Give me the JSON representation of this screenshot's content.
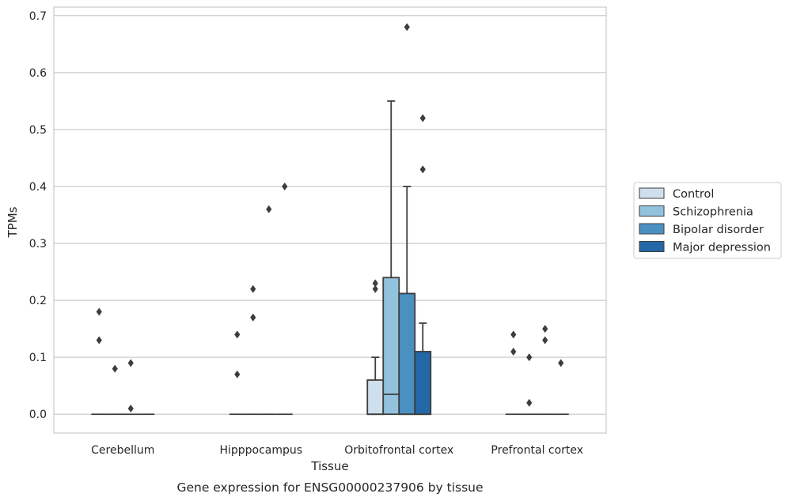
{
  "chart_data": {
    "type": "box",
    "xlabel": "Tissue",
    "ylabel": "TPMs",
    "caption": "Gene expression for ENSG00000237906 by tissue",
    "ylim": [
      -0.033,
      0.715
    ],
    "yticks": [
      "0.0",
      "0.1",
      "0.2",
      "0.3",
      "0.4",
      "0.5",
      "0.6",
      "0.7"
    ],
    "ytick_values": [
      0,
      0.1,
      0.2,
      0.3,
      0.4,
      0.5,
      0.6,
      0.7
    ],
    "grid": "horizontal",
    "legend_placement": "right",
    "categories": [
      "Cerebellum",
      "Hipppocampus",
      "Orbitofrontal cortex",
      "Prefrontal cortex"
    ],
    "series": [
      {
        "name": "Control",
        "color": "#cfdfee",
        "boxes": [
          {
            "q1": 0,
            "median": 0,
            "q3": 0,
            "whislo": 0,
            "whishi": 0,
            "fliers": [
              0.18,
              0.13
            ]
          },
          {
            "q1": 0,
            "median": 0,
            "q3": 0,
            "whislo": 0,
            "whishi": 0,
            "fliers": [
              0.14,
              0.07
            ]
          },
          {
            "q1": 0,
            "median": 0,
            "q3": 0.06,
            "whislo": 0,
            "whishi": 0.1,
            "fliers": [
              0.23,
              0.22
            ]
          },
          {
            "q1": 0,
            "median": 0,
            "q3": 0,
            "whislo": 0,
            "whishi": 0,
            "fliers": [
              0.14,
              0.11
            ]
          }
        ]
      },
      {
        "name": "Schizophrenia",
        "color": "#93c2de",
        "boxes": [
          {
            "q1": 0,
            "median": 0,
            "q3": 0,
            "whislo": 0,
            "whishi": 0,
            "fliers": [
              0.08
            ]
          },
          {
            "q1": 0,
            "median": 0,
            "q3": 0,
            "whislo": 0,
            "whishi": 0,
            "fliers": [
              0.22,
              0.17
            ]
          },
          {
            "q1": 0,
            "median": 0.035,
            "q3": 0.24,
            "whislo": 0,
            "whishi": 0.55,
            "fliers": []
          },
          {
            "q1": 0,
            "median": 0,
            "q3": 0,
            "whislo": 0,
            "whishi": 0,
            "fliers": [
              0.1,
              0.02
            ]
          }
        ]
      },
      {
        "name": "Bipolar disorder",
        "color": "#4a91c2",
        "boxes": [
          {
            "q1": 0,
            "median": 0,
            "q3": 0,
            "whislo": 0,
            "whishi": 0,
            "fliers": [
              0.09,
              0.01
            ]
          },
          {
            "q1": 0,
            "median": 0,
            "q3": 0,
            "whislo": 0,
            "whishi": 0,
            "fliers": [
              0.36
            ]
          },
          {
            "q1": 0,
            "median": 0,
            "q3": 0.212,
            "whislo": 0,
            "whishi": 0.4,
            "fliers": [
              0.68
            ]
          },
          {
            "q1": 0,
            "median": 0,
            "q3": 0,
            "whislo": 0,
            "whishi": 0,
            "fliers": [
              0.15,
              0.13
            ]
          }
        ]
      },
      {
        "name": "Major depression",
        "color": "#2467a7",
        "boxes": [
          {
            "q1": 0,
            "median": 0,
            "q3": 0,
            "whislo": 0,
            "whishi": 0,
            "fliers": []
          },
          {
            "q1": 0,
            "median": 0,
            "q3": 0,
            "whislo": 0,
            "whishi": 0,
            "fliers": [
              0.4
            ]
          },
          {
            "q1": 0,
            "median": 0,
            "q3": 0.11,
            "whislo": 0,
            "whishi": 0.16,
            "fliers": [
              0.52,
              0.43
            ]
          },
          {
            "q1": 0,
            "median": 0,
            "q3": 0,
            "whislo": 0,
            "whishi": 0,
            "fliers": [
              0.09
            ]
          }
        ]
      }
    ]
  }
}
